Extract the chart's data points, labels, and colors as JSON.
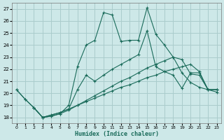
{
  "xlabel": "Humidex (Indice chaleur)",
  "bg_color": "#cde8e8",
  "grid_color": "#aacccc",
  "line_color": "#1a6b5a",
  "xlim": [
    -0.5,
    23.5
  ],
  "ylim": [
    17.5,
    27.5
  ],
  "xticks": [
    0,
    1,
    2,
    3,
    4,
    5,
    6,
    7,
    8,
    9,
    10,
    11,
    12,
    13,
    14,
    15,
    16,
    17,
    18,
    19,
    20,
    21,
    22,
    23
  ],
  "yticks": [
    18,
    19,
    20,
    21,
    22,
    23,
    24,
    25,
    26,
    27
  ],
  "line1_x": [
    0,
    1,
    2,
    3,
    4,
    5,
    6,
    7,
    8,
    9,
    10,
    11,
    12,
    13,
    14,
    15,
    16,
    17,
    18,
    19,
    20,
    21,
    22,
    23
  ],
  "line1_y": [
    20.3,
    19.5,
    18.8,
    18.0,
    18.1,
    18.3,
    18.6,
    19.0,
    19.4,
    19.8,
    20.2,
    20.6,
    21.0,
    21.3,
    21.7,
    22.1,
    22.4,
    22.7,
    23.0,
    22.8,
    21.6,
    21.5,
    20.3,
    20.3
  ],
  "line2_x": [
    0,
    1,
    2,
    3,
    4,
    5,
    6,
    7,
    8,
    9,
    10,
    11,
    12,
    13,
    14,
    15,
    16,
    17,
    18,
    19,
    20,
    21,
    22,
    23
  ],
  "line2_y": [
    20.3,
    19.5,
    18.8,
    18.0,
    18.1,
    18.3,
    19.0,
    22.2,
    24.0,
    24.4,
    26.7,
    26.5,
    24.3,
    24.4,
    24.4,
    27.1,
    24.9,
    24.0,
    23.0,
    21.7,
    20.9,
    20.5,
    20.3,
    20.3
  ],
  "line3_x": [
    2,
    3,
    4,
    5,
    6,
    7,
    8,
    9,
    10,
    11,
    12,
    13,
    14,
    15,
    16,
    17,
    18,
    19,
    20,
    21,
    22,
    23
  ],
  "line3_y": [
    18.8,
    18.0,
    18.2,
    18.4,
    18.7,
    20.3,
    21.5,
    21.0,
    21.5,
    22.0,
    22.4,
    22.8,
    23.2,
    25.2,
    22.2,
    21.8,
    21.5,
    20.4,
    21.7,
    21.7,
    20.3,
    20.3
  ],
  "line4_x": [
    2,
    3,
    5,
    6,
    7,
    8,
    9,
    10,
    11,
    12,
    13,
    14,
    15,
    16,
    17,
    18,
    19,
    20,
    21,
    22,
    23
  ],
  "line4_y": [
    18.8,
    18.0,
    18.4,
    18.7,
    19.0,
    19.3,
    19.6,
    19.9,
    20.2,
    20.5,
    20.7,
    21.0,
    21.3,
    21.5,
    21.8,
    22.0,
    22.2,
    22.4,
    21.8,
    20.3,
    20.1
  ]
}
